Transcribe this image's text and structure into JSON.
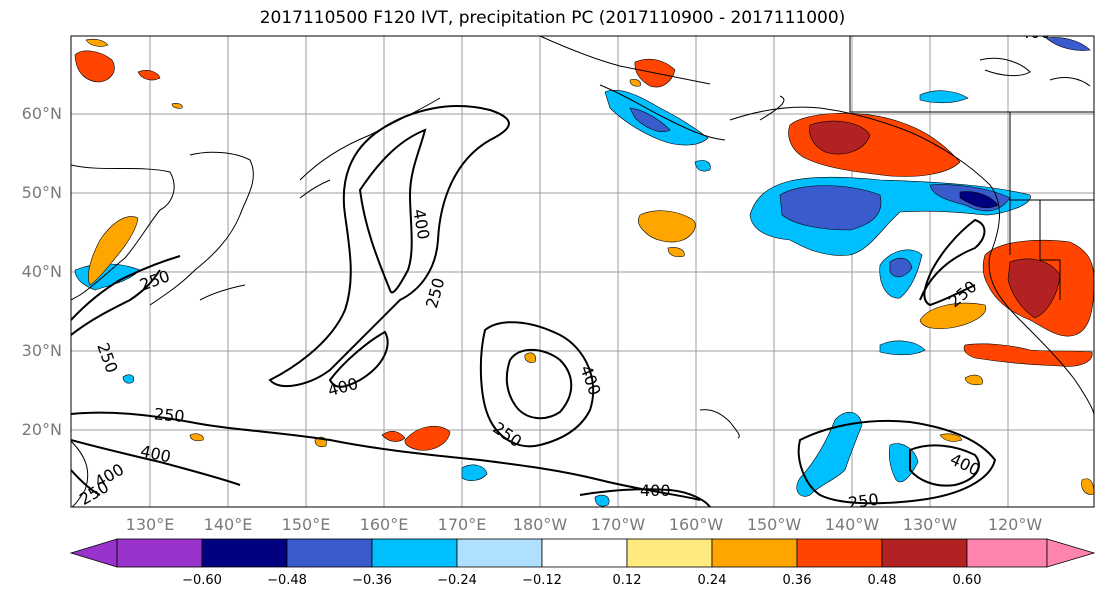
{
  "title": "2017110500 F120 IVT, precipitation PC (2017110900 - 2017111000)",
  "map": {
    "lat_labels": [
      "60°N",
      "50°N",
      "40°N",
      "30°N",
      "20°N"
    ],
    "lon_labels": [
      "130°E",
      "140°E",
      "150°E",
      "160°E",
      "170°E",
      "180°W",
      "170°W",
      "160°W",
      "150°W",
      "140°W",
      "130°W",
      "120°W"
    ],
    "contour_labels": [
      "400",
      "250",
      "250",
      "250",
      "400",
      "400",
      "250",
      "250",
      "400",
      "400",
      "250",
      "250",
      "400",
      "400",
      "250",
      "400"
    ],
    "colors": {
      "coast": "#000000",
      "grid": "#9e9e9e",
      "contour": "#000000"
    }
  },
  "colorbar": {
    "colors": [
      "#9933cc",
      "#000080",
      "#3a5bcc",
      "#00bfff",
      "#b0e0ff",
      "#ffffff",
      "#ffea80",
      "#ffa500",
      "#ff4500",
      "#b22222",
      "#ff85b0"
    ],
    "tick_labels": [
      "−0.60",
      "−0.48",
      "−0.36",
      "−0.24",
      "−0.12",
      "0.12",
      "0.24",
      "0.36",
      "0.48",
      "0.60"
    ]
  }
}
